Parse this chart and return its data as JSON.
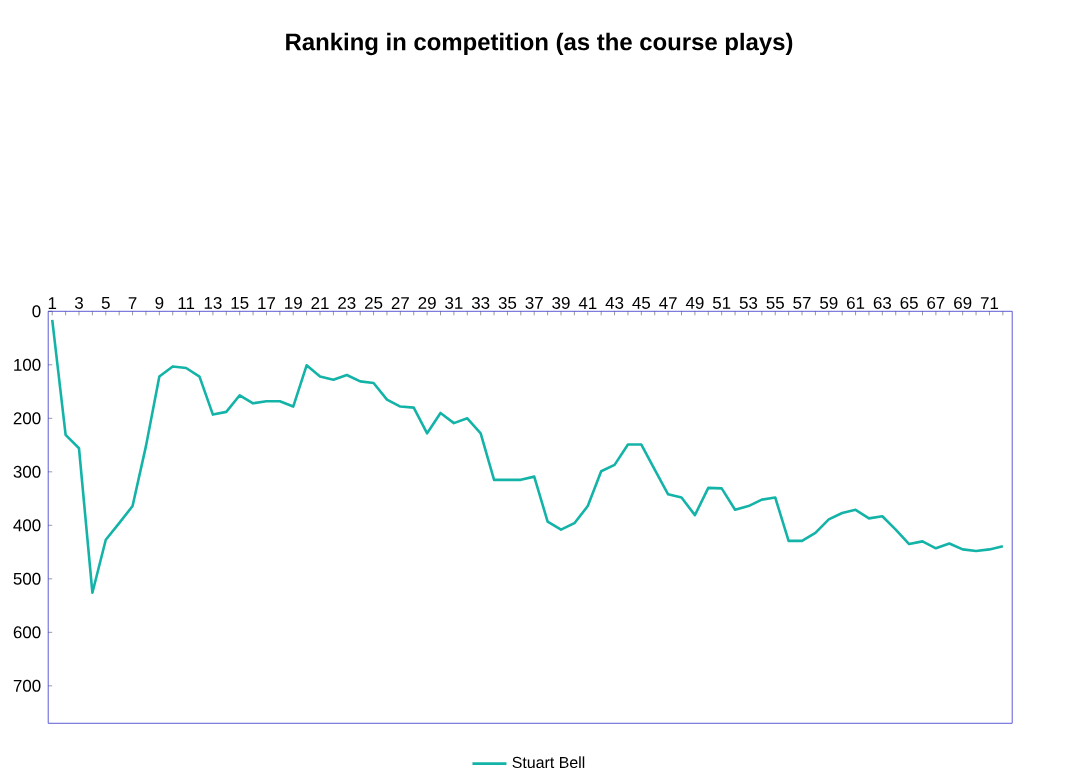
{
  "chart_data": {
    "type": "line",
    "title": "Ranking in competition (as the course plays)",
    "categories": [
      "1",
      null,
      "3",
      null,
      "5",
      null,
      "7",
      null,
      "9",
      null,
      "11",
      null,
      "13",
      null,
      "15",
      null,
      "17",
      null,
      "19",
      null,
      "21",
      null,
      "23",
      null,
      "25",
      null,
      "27",
      null,
      "29",
      null,
      "31",
      null,
      "33",
      null,
      "35",
      null,
      "37",
      null,
      "39",
      null,
      "41",
      null,
      "43",
      null,
      "45",
      null,
      "47",
      null,
      "49",
      null,
      "51",
      null,
      "53",
      null,
      "55",
      null,
      "57",
      null,
      "59",
      null,
      "61",
      null,
      "63",
      null,
      "65",
      null,
      "67",
      null,
      "69",
      null,
      "71",
      null
    ],
    "series": [
      {
        "name": "Stuart Bell",
        "color": "#14b3a8",
        "values": [
          16,
          231,
          256,
          526,
          427,
          396,
          364,
          252,
          122,
          103,
          106,
          122,
          193,
          188,
          157,
          172,
          168,
          168,
          178,
          101,
          122,
          128,
          119,
          131,
          134,
          165,
          178,
          180,
          228,
          190,
          209,
          200,
          228,
          315,
          315,
          315,
          309,
          393,
          408,
          396,
          364,
          299,
          287,
          249,
          249,
          296,
          342,
          348,
          381,
          330,
          331,
          371,
          364,
          352,
          348,
          429,
          429,
          414,
          389,
          377,
          371,
          387,
          383,
          408,
          435,
          430,
          443,
          434,
          445,
          448,
          445,
          439
        ]
      }
    ],
    "ylim": [
      770,
      0
    ],
    "yticks": [
      0,
      100,
      200,
      300,
      400,
      500,
      600,
      700
    ],
    "grid": false,
    "legend": "bottom",
    "marker": "none",
    "line_style": "solid"
  }
}
